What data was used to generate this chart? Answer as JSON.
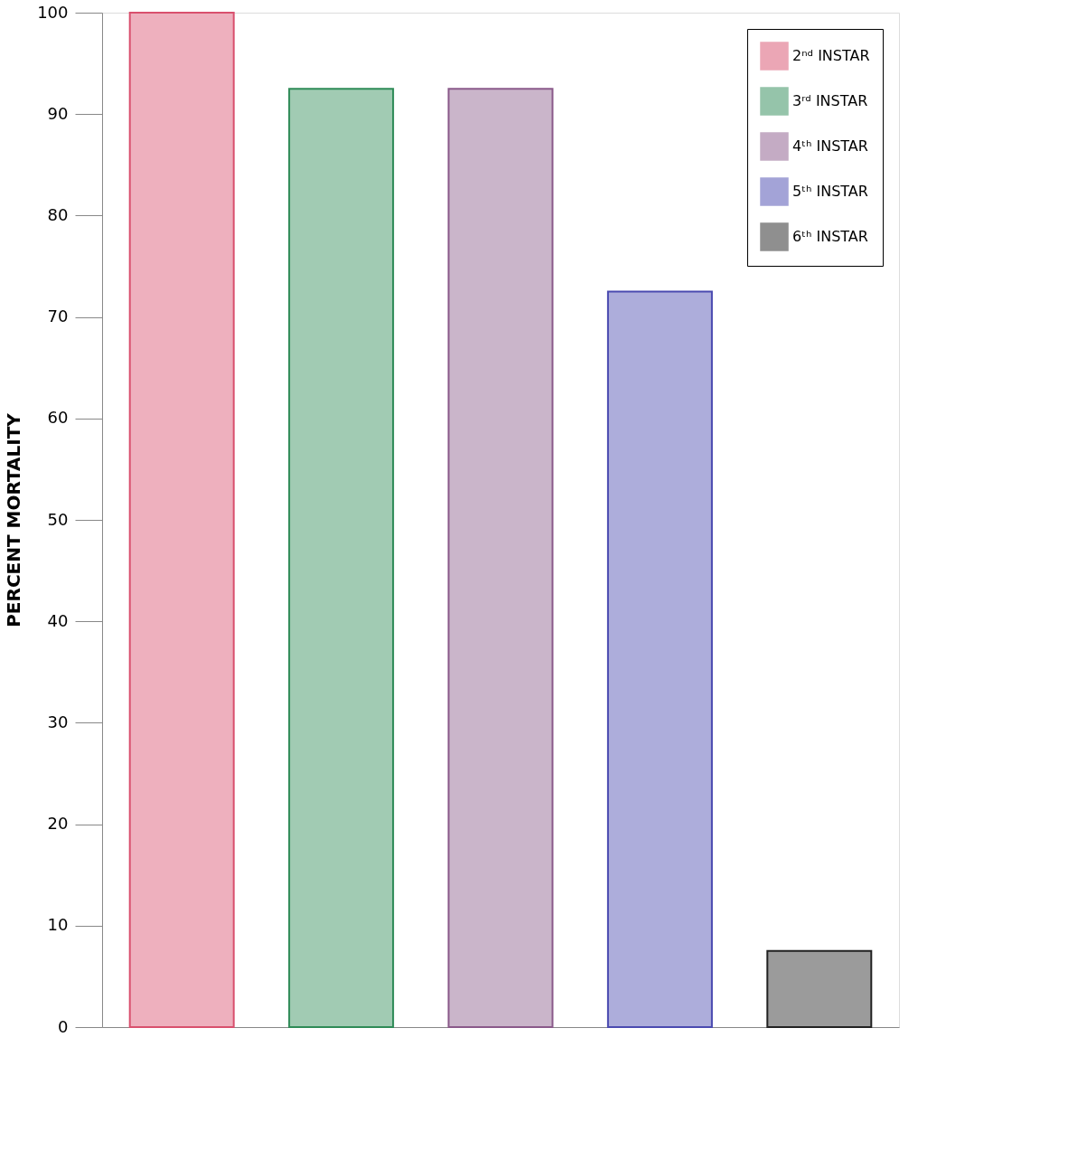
{
  "chart_data": {
    "type": "bar",
    "ylabel": "PERCENT MORTALITY",
    "categories": [
      null,
      null,
      null,
      null,
      null
    ],
    "series": [
      {
        "name": "2ⁿᵈ INSTAR",
        "color": "#d9506e",
        "values": [
          100,
          null,
          null,
          null,
          null
        ]
      },
      {
        "name": "3ʳᵈ INSTAR",
        "color": "#2e8b57",
        "values": [
          null,
          92.5,
          null,
          null,
          null
        ]
      },
      {
        "name": "4ᵗʰ INSTAR",
        "color": "#8a5a8a",
        "values": [
          null,
          null,
          92.5,
          null,
          null
        ]
      },
      {
        "name": "5ᵗʰ INSTAR",
        "color": "#4a4ab0",
        "values": [
          null,
          null,
          null,
          72.5,
          null
        ]
      },
      {
        "name": "6ᵗʰ INSTAR",
        "color": "#222222",
        "values": [
          null,
          null,
          null,
          null,
          7.5
        ]
      }
    ],
    "ylim": [
      0,
      100
    ],
    "yticks": [
      0,
      10,
      20,
      30,
      40,
      50,
      60,
      70,
      80,
      90,
      100
    ],
    "grid": false,
    "legend": "top right"
  }
}
